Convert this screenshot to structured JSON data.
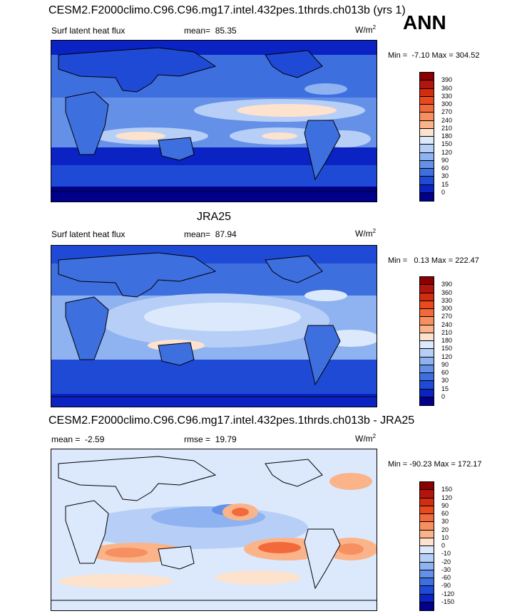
{
  "header": {
    "ann": "ANN"
  },
  "panels": [
    {
      "title": "CESM2.F2000climo.C96.C96.mg17.intel.432pes.1thrds.ch013b (yrs 1)",
      "left_label": "Surf latent heat flux",
      "stat_label": "mean=",
      "stat_value": "85.35",
      "units": "W/m",
      "units_sup": "2",
      "min_label": "Min =",
      "min_value": "-7.10",
      "max_label": "Max =",
      "max_value": "304.52"
    },
    {
      "title": "JRA25",
      "left_label": "Surf latent heat flux",
      "stat_label": "mean=",
      "stat_value": "87.94",
      "units": "W/m",
      "units_sup": "2",
      "min_label": "Min =",
      "min_value": "0.13",
      "max_label": "Max =",
      "max_value": "222.47"
    },
    {
      "title": "CESM2.F2000climo.C96.C96.mg17.intel.432pes.1thrds.ch013b - JRA25",
      "left_label": "mean =",
      "left_value": "-2.59",
      "stat_label": "rmse =",
      "stat_value": "19.79",
      "units": "W/m",
      "units_sup": "2",
      "min_label": "Min =",
      "min_value": "-90.23",
      "max_label": "Max =",
      "max_value": "172.17"
    }
  ],
  "chart_data": [
    {
      "type": "heatmap",
      "title": "CESM2.F2000climo.C96.C96.mg17.intel.432pes.1thrds.ch013b (yrs 1)",
      "variable": "Surf latent heat flux",
      "units": "W/m2",
      "mean": 85.35,
      "min": -7.1,
      "max": 304.52,
      "colorbar_levels": [
        390,
        360,
        330,
        300,
        270,
        240,
        210,
        180,
        150,
        120,
        90,
        60,
        30,
        15,
        0
      ],
      "colors": [
        "#8b0000",
        "#b2140e",
        "#d22d0e",
        "#e8491e",
        "#f26a3b",
        "#f79060",
        "#fbb489",
        "#fde2cd",
        "#dce9fc",
        "#b7cff7",
        "#8fb2f0",
        "#6590e8",
        "#3e6fdf",
        "#1f4ad6",
        "#0a23c2",
        "#00008b"
      ]
    },
    {
      "type": "heatmap",
      "title": "JRA25",
      "variable": "Surf latent heat flux",
      "units": "W/m2",
      "mean": 87.94,
      "min": 0.13,
      "max": 222.47,
      "colorbar_levels": [
        390,
        360,
        330,
        300,
        270,
        240,
        210,
        180,
        150,
        120,
        90,
        60,
        30,
        15,
        0
      ],
      "colors": [
        "#8b0000",
        "#b2140e",
        "#d22d0e",
        "#e8491e",
        "#f26a3b",
        "#f79060",
        "#fbb489",
        "#fde2cd",
        "#dce9fc",
        "#b7cff7",
        "#8fb2f0",
        "#6590e8",
        "#3e6fdf",
        "#1f4ad6",
        "#0a23c2",
        "#00008b"
      ]
    },
    {
      "type": "heatmap",
      "title": "CESM2.F2000climo.C96.C96.mg17.intel.432pes.1thrds.ch013b - JRA25",
      "units": "W/m2",
      "mean": -2.59,
      "rmse": 19.79,
      "min": -90.23,
      "max": 172.17,
      "colorbar_levels": [
        150,
        120,
        90,
        60,
        30,
        20,
        10,
        0,
        -10,
        -20,
        -30,
        -60,
        -90,
        -120,
        -150
      ],
      "colors": [
        "#8b0000",
        "#b2140e",
        "#d22d0e",
        "#e8491e",
        "#f26a3b",
        "#f79060",
        "#fbb489",
        "#fde2cd",
        "#dce9fc",
        "#b7cff7",
        "#8fb2f0",
        "#6590e8",
        "#3e6fdf",
        "#1f4ad6",
        "#0a23c2",
        "#00008b"
      ]
    }
  ]
}
